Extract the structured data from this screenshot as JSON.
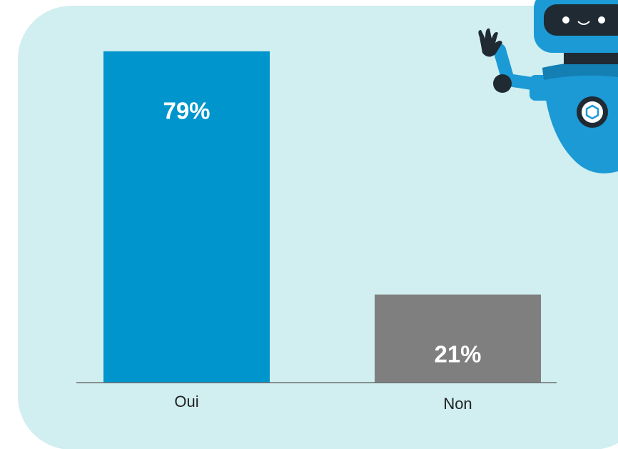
{
  "chart_data": {
    "type": "bar",
    "categories": [
      "Oui",
      "Non"
    ],
    "values": [
      79,
      21
    ],
    "value_labels": [
      "79%",
      "21%"
    ],
    "colors": [
      "#0096cd",
      "#7f7f7f"
    ],
    "ylim": [
      0,
      80
    ]
  }
}
